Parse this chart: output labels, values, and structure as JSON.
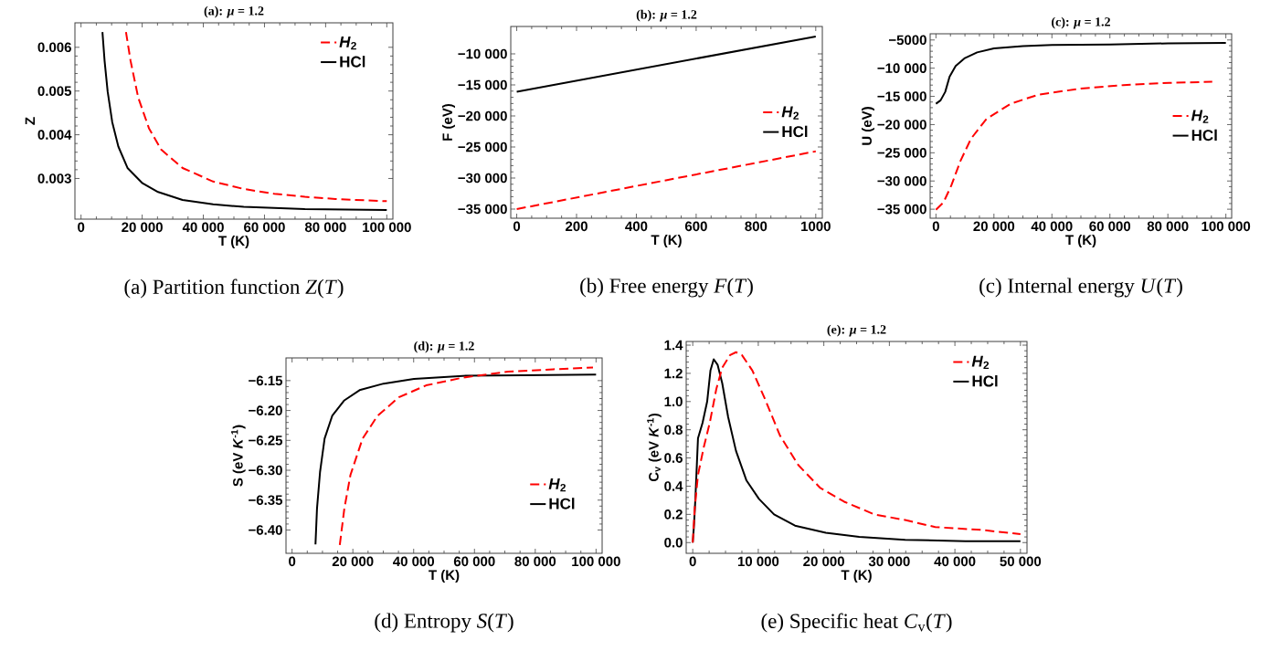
{
  "chart_data": [
    {
      "type": "line",
      "title": "(a):  *μ* = 1.2",
      "xlabel": "T (K)",
      "ylabel": "Z",
      "legend": "top right",
      "xlim": [
        -2000,
        102000
      ],
      "ylim": [
        0.00207,
        0.00656
      ],
      "xticks": [
        0,
        {
          "value": 20000,
          "label": "20 000"
        },
        {
          "value": 40000,
          "label": "40 000"
        },
        {
          "value": 60000,
          "label": "60 000"
        },
        {
          "value": 80000,
          "label": "80 000"
        },
        {
          "value": 100000,
          "label": "100 000"
        }
      ],
      "yticks": [
        0.003,
        0.004,
        0.005,
        0.006
      ],
      "annotations": [
        "(a) Partition function *Z*(*T*)"
      ],
      "series": [
        {
          "name": "*H*$_{2}$",
          "color": "#ff0000",
          "line_style": "dashed",
          "x": [
            14700,
            16200,
            18700,
            22200,
            26200,
            33200,
            43200,
            53200,
            63200,
            73200,
            83200,
            100000
          ],
          "values": [
            0.00635,
            0.00569,
            0.00485,
            0.00415,
            0.00366,
            0.00324,
            0.00293,
            0.00276,
            0.00265,
            0.00258,
            0.00253,
            0.00248
          ]
        },
        {
          "name": "HCl",
          "color": "#000000",
          "line_style": "solid",
          "x": [
            7000,
            7700,
            8700,
            10200,
            12200,
            15200,
            20100,
            25200,
            33200,
            43200,
            53200,
            73200,
            100000
          ],
          "values": [
            0.00635,
            0.00569,
            0.00499,
            0.00429,
            0.00373,
            0.00324,
            0.00289,
            0.00269,
            0.00251,
            0.00241,
            0.00235,
            0.0023,
            0.00228
          ]
        }
      ]
    },
    {
      "type": "line",
      "title": "(b):  *μ* = 1.2",
      "xlabel": "T (K)",
      "ylabel": "F (eV)",
      "legend": "right",
      "xlim": [
        -20,
        1022
      ],
      "ylim": [
        -36470,
        -5590
      ],
      "xticks": [
        0,
        200,
        400,
        600,
        800,
        1000
      ],
      "yticks": [
        {
          "value": -35000,
          "label": "−35 000"
        },
        {
          "value": -30000,
          "label": "−30 000"
        },
        {
          "value": -25000,
          "label": "−25 000"
        },
        {
          "value": -20000,
          "label": "−20 000"
        },
        {
          "value": -15000,
          "label": "−15 000"
        },
        {
          "value": -10000,
          "label": "−10 000"
        }
      ],
      "annotations": [
        "(b) Free energy *F*(*T*)"
      ],
      "series": [
        {
          "name": "*H*$_{2}$",
          "color": "#ff0000",
          "line_style": "dashed",
          "x": [
            0,
            1000
          ],
          "values": [
            -35000,
            -25700
          ]
        },
        {
          "name": "HCl",
          "color": "#000000",
          "line_style": "solid",
          "x": [
            0,
            1000
          ],
          "values": [
            -16100,
            -7200
          ]
        }
      ]
    },
    {
      "type": "line",
      "title": "(c):  *μ* = 1.2",
      "xlabel": "T (K)",
      "ylabel": "U (eV)",
      "legend": "right",
      "xlim": [
        -2000,
        102000
      ],
      "ylim": [
        -36600,
        -3900
      ],
      "xticks": [
        0,
        {
          "value": 20000,
          "label": "20 000"
        },
        {
          "value": 40000,
          "label": "40 000"
        },
        {
          "value": 60000,
          "label": "60 000"
        },
        {
          "value": 80000,
          "label": "80 000"
        },
        {
          "value": 100000,
          "label": "100 000"
        }
      ],
      "yticks": [
        {
          "value": -35000,
          "label": "−35 000"
        },
        {
          "value": -30000,
          "label": "−30 000"
        },
        {
          "value": -25000,
          "label": "−25 000"
        },
        {
          "value": -20000,
          "label": "−20 000"
        },
        {
          "value": -15000,
          "label": "−15 000"
        },
        {
          "value": -10000,
          "label": "−10 000"
        },
        {
          "value": -5000,
          "label": "−5000"
        }
      ],
      "annotations": [
        "(c) Internal energy *U*(*T*)"
      ],
      "series": [
        {
          "name": "*H*$_{2}$",
          "color": "#ff0000",
          "line_style": "dashed",
          "x": [
            0,
            2600,
            5300,
            8400,
            12100,
            17400,
            25800,
            35300,
            50000,
            64700,
            80500,
            95300
          ],
          "values": [
            -35100,
            -33800,
            -30800,
            -26500,
            -22500,
            -19000,
            -16300,
            -14700,
            -13600,
            -13000,
            -12600,
            -12400
          ]
        },
        {
          "name": "HCl",
          "color": "#000000",
          "line_style": "solid",
          "x": [
            0,
            1600,
            3200,
            4700,
            6800,
            10000,
            14200,
            20000,
            30000,
            40000,
            60000,
            80000,
            100000
          ],
          "values": [
            -16300,
            -15700,
            -14200,
            -11500,
            -9600,
            -8200,
            -7200,
            -6500,
            -6100,
            -5900,
            -5800,
            -5600,
            -5500
          ]
        }
      ]
    },
    {
      "type": "line",
      "title": "(d):  *μ* = 1.2",
      "xlabel": "T (K)",
      "ylabel": "S (eV *K*$^{-1}$)",
      "legend": "bottom right",
      "xlim": [
        -2000,
        102000
      ],
      "ylim": [
        -6.439,
        -6.112
      ],
      "xticks": [
        0,
        {
          "value": 20000,
          "label": "20 000"
        },
        {
          "value": 40000,
          "label": "40 000"
        },
        {
          "value": 60000,
          "label": "60 000"
        },
        {
          "value": 80000,
          "label": "80 000"
        },
        {
          "value": 100000,
          "label": "100 000"
        }
      ],
      "yticks": [
        {
          "value": -6.4,
          "label": "−6.40"
        },
        {
          "value": -6.35,
          "label": "−6.35"
        },
        {
          "value": -6.3,
          "label": "−6.30"
        },
        {
          "value": -6.25,
          "label": "−6.25"
        },
        {
          "value": -6.2,
          "label": "−6.20"
        },
        {
          "value": -6.15,
          "label": "−6.15"
        }
      ],
      "annotations": [
        "(d) Entropy *S*(*T*)"
      ],
      "series": [
        {
          "name": "*H*$_{2}$",
          "color": "#ff0000",
          "line_style": "dashed",
          "x": [
            15700,
            17200,
            19200,
            23200,
            28100,
            35100,
            44100,
            56100,
            71100,
            86000,
            99000
          ],
          "values": [
            -6.425,
            -6.364,
            -6.308,
            -6.247,
            -6.209,
            -6.178,
            -6.158,
            -6.145,
            -6.135,
            -6.131,
            -6.128
          ]
        },
        {
          "name": "HCl",
          "color": "#000000",
          "line_style": "solid",
          "x": [
            7700,
            8200,
            9200,
            10700,
            13200,
            17200,
            22200,
            30100,
            40100,
            56100,
            76000,
            100000
          ],
          "values": [
            -6.424,
            -6.364,
            -6.303,
            -6.247,
            -6.209,
            -6.183,
            -6.166,
            -6.155,
            -6.147,
            -6.142,
            -6.141,
            -6.14
          ]
        }
      ]
    },
    {
      "type": "line",
      "title": "(e):  *μ* = 1.2",
      "xlabel": "T (K)",
      "ylabel": "C$_{v}$ (eV *K*$^{-1}$)",
      "legend": "top right",
      "xlim": [
        -1000,
        51000
      ],
      "ylim": [
        -0.076,
        1.426
      ],
      "xticks": [
        0,
        {
          "value": 10000,
          "label": "10 000"
        },
        {
          "value": 20000,
          "label": "20 000"
        },
        {
          "value": 30000,
          "label": "30 000"
        },
        {
          "value": 40000,
          "label": "40 000"
        },
        {
          "value": 50000,
          "label": "50 000"
        }
      ],
      "yticks": [
        {
          "value": 0,
          "label": "0.0"
        },
        0.2,
        0.4,
        0.6,
        0.8,
        {
          "value": 1,
          "label": "1.0"
        },
        1.2,
        1.4
      ],
      "annotations": [
        "(e) Specific heat *C*$_{v}$(*T*)"
      ],
      "series": [
        {
          "name": "*H*$_{2}$",
          "color": "#ff0000",
          "line_style": "dashed",
          "x": [
            0,
            300,
            800,
            1700,
            2600,
            3600,
            4500,
            5700,
            6600,
            7500,
            9100,
            11000,
            13300,
            16100,
            19400,
            23100,
            27700,
            32400,
            37000,
            44000,
            50000
          ],
          "values": [
            0,
            0.24,
            0.48,
            0.68,
            0.85,
            1.09,
            1.24,
            1.33,
            1.35,
            1.33,
            1.22,
            1.02,
            0.76,
            0.55,
            0.39,
            0.29,
            0.2,
            0.16,
            0.11,
            0.09,
            0.06
          ]
        },
        {
          "name": "HCl",
          "color": "#000000",
          "line_style": "solid",
          "x": [
            0,
            200,
            400,
            800,
            1500,
            2200,
            2700,
            3200,
            3800,
            4500,
            5400,
            6600,
            8200,
            10100,
            12400,
            15600,
            20300,
            25400,
            32400,
            41600,
            50000
          ],
          "values": [
            0.0,
            0.13,
            0.31,
            0.74,
            0.85,
            1.0,
            1.22,
            1.3,
            1.26,
            1.13,
            0.89,
            0.65,
            0.44,
            0.31,
            0.2,
            0.12,
            0.07,
            0.04,
            0.02,
            0.01,
            0.01
          ]
        }
      ]
    }
  ]
}
